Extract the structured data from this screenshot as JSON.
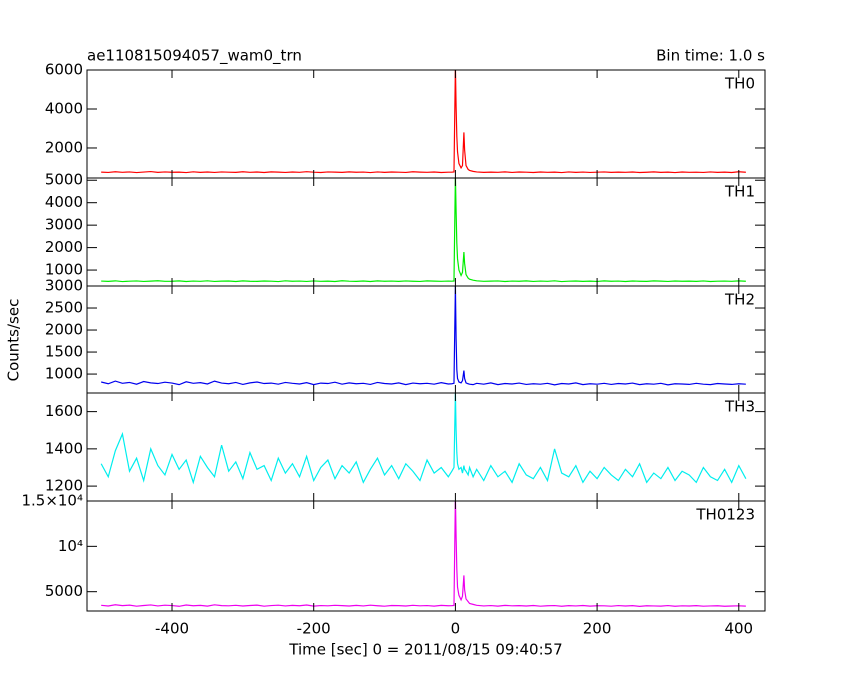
{
  "chart_data": {
    "type": "stacked-line",
    "title": "ae110815094057_wam0_trn",
    "subtitle": "Bin time: 1.0 s",
    "ylabel": "Counts/sec",
    "xlabel": "Time [sec] 0 = 2011/08/15 09:40:57",
    "xlim": [
      -520,
      437
    ],
    "xticks": [
      -400,
      -200,
      0,
      200,
      400
    ],
    "x": [
      -500,
      -490,
      -480,
      -470,
      -460,
      -450,
      -440,
      -430,
      -420,
      -410,
      -400,
      -390,
      -380,
      -370,
      -360,
      -350,
      -340,
      -330,
      -320,
      -310,
      -300,
      -290,
      -280,
      -270,
      -260,
      -250,
      -240,
      -230,
      -220,
      -210,
      -200,
      -190,
      -180,
      -170,
      -160,
      -150,
      -140,
      -130,
      -120,
      -110,
      -100,
      -90,
      -80,
      -70,
      -60,
      -50,
      -40,
      -30,
      -20,
      -10,
      -5,
      -2,
      0,
      1,
      2,
      3,
      5,
      8,
      10,
      12,
      13,
      15,
      18,
      20,
      25,
      30,
      40,
      50,
      60,
      70,
      80,
      90,
      100,
      110,
      120,
      130,
      140,
      150,
      160,
      170,
      180,
      190,
      200,
      210,
      220,
      230,
      240,
      250,
      260,
      270,
      280,
      290,
      300,
      310,
      320,
      330,
      340,
      350,
      360,
      370,
      380,
      390,
      400,
      410
    ],
    "series": [
      {
        "name": "TH0",
        "color": "#ff0000",
        "ylim": [
          460,
          6000
        ],
        "yticks": [
          2000,
          4000,
          6000
        ],
        "values": [
          760,
          745,
          780,
          752,
          770,
          738,
          765,
          790,
          748,
          771,
          755,
          762,
          740,
          778,
          750,
          766,
          744,
          772,
          758,
          749,
          781,
          753,
          767,
          741,
          775,
          760,
          746,
          769,
          752,
          784,
          757,
          743,
          770,
          761,
          748,
          776,
          755,
          764,
          739,
          771,
          750,
          768,
          757,
          745,
          779,
          762,
          751,
          766,
          742,
          758,
          760,
          770,
          6200,
          4100,
          2600,
          1800,
          1200,
          980,
          1100,
          2800,
          1900,
          1100,
          900,
          850,
          800,
          770,
          748,
          761,
          752,
          775,
          744,
          766,
          757,
          741,
          769,
          753,
          762,
          738,
          771,
          750,
          764,
          745,
          758,
          772,
          747,
          760,
          751,
          768,
          743,
          756,
          774,
          749,
          762,
          740,
          766,
          753,
          758,
          745,
          771,
          750,
          763,
          742,
          780,
          755
        ]
      },
      {
        "name": "TH1",
        "color": "#00ee00",
        "ylim": [
          290,
          5100
        ],
        "yticks": [
          1000,
          2000,
          3000,
          4000,
          5000
        ],
        "values": [
          510,
          495,
          520,
          488,
          505,
          515,
          492,
          508,
          525,
          498,
          503,
          517,
          490,
          511,
          499,
          522,
          494,
          507,
          513,
          489,
          519,
          501,
          496,
          514,
          505,
          487,
          521,
          502,
          510,
          493,
          516,
          498,
          508,
          491,
          524,
          504,
          497,
          512,
          489,
          518,
          500,
          509,
          495,
          515,
          503,
          492,
          520,
          506,
          499,
          511,
          505,
          512,
          5200,
          3600,
          2200,
          1500,
          1000,
          760,
          900,
          1800,
          1300,
          800,
          640,
          590,
          550,
          520,
          498,
          507,
          515,
          490,
          509,
          502,
          518,
          494,
          511,
          499,
          521,
          488,
          505,
          513,
          496,
          508,
          492,
          517,
          501,
          510,
          489,
          514,
          503,
          497,
          519,
          506,
          493,
          512,
          500,
          508,
          495,
          516,
          490,
          504,
          511,
          498,
          520,
          502
        ]
      },
      {
        "name": "TH2",
        "color": "#0000ee",
        "ylim": [
          570,
          3000
        ],
        "yticks": [
          1000,
          1500,
          2000,
          2500,
          3000
        ],
        "values": [
          820,
          780,
          840,
          790,
          810,
          770,
          830,
          800,
          785,
          815,
          795,
          760,
          825,
          790,
          805,
          775,
          840,
          795,
          780,
          810,
          765,
          800,
          820,
          785,
          795,
          770,
          810,
          790,
          775,
          805,
          760,
          795,
          785,
          815,
          770,
          800,
          780,
          790,
          765,
          810,
          785,
          775,
          800,
          760,
          795,
          780,
          790,
          770,
          805,
          775,
          780,
          790,
          3000,
          1800,
          1100,
          900,
          820,
          800,
          850,
          1080,
          900,
          800,
          780,
          770,
          760,
          790,
          770,
          800,
          760,
          785,
          775,
          795,
          765,
          780,
          770,
          790,
          755,
          785,
          775,
          800,
          760,
          780,
          770,
          790,
          765,
          785,
          775,
          795,
          760,
          780,
          770,
          790,
          755,
          780,
          775,
          765,
          790,
          770,
          760,
          785,
          775,
          765,
          780,
          770
        ]
      },
      {
        "name": "TH3",
        "color": "#00eeee",
        "ylim": [
          1120,
          1700
        ],
        "yticks": [
          1200,
          1400,
          1600
        ],
        "values": [
          1320,
          1250,
          1390,
          1480,
          1280,
          1350,
          1230,
          1400,
          1310,
          1260,
          1370,
          1290,
          1340,
          1220,
          1360,
          1300,
          1250,
          1420,
          1280,
          1330,
          1240,
          1380,
          1290,
          1310,
          1230,
          1350,
          1270,
          1320,
          1250,
          1360,
          1230,
          1300,
          1340,
          1240,
          1310,
          1270,
          1330,
          1220,
          1290,
          1350,
          1260,
          1310,
          1240,
          1320,
          1280,
          1230,
          1340,
          1270,
          1300,
          1250,
          1280,
          1300,
          1700,
          1500,
          1380,
          1320,
          1290,
          1300,
          1270,
          1310,
          1290,
          1280,
          1260,
          1300,
          1250,
          1290,
          1230,
          1310,
          1250,
          1280,
          1220,
          1320,
          1260,
          1240,
          1300,
          1230,
          1400,
          1270,
          1250,
          1310,
          1220,
          1280,
          1240,
          1300,
          1260,
          1230,
          1290,
          1250,
          1320,
          1220,
          1270,
          1240,
          1300,
          1230,
          1280,
          1260,
          1220,
          1300,
          1250,
          1230,
          1290,
          1220,
          1310,
          1240
        ]
      },
      {
        "name": "TH0123",
        "color": "#ee00ee",
        "ylim": [
          2870,
          15000
        ],
        "yticks": [
          5000,
          {
            "value": 10000,
            "label": "10⁴"
          },
          {
            "value": 15000,
            "label": "1.5×10⁴"
          }
        ],
        "values": [
          3500,
          3420,
          3560,
          3460,
          3520,
          3400,
          3480,
          3540,
          3430,
          3510,
          3470,
          3390,
          3530,
          3450,
          3490,
          3410,
          3550,
          3460,
          3440,
          3500,
          3420,
          3480,
          3520,
          3400,
          3470,
          3510,
          3430,
          3490,
          3450,
          3530,
          3410,
          3470,
          3440,
          3500,
          3460,
          3420,
          3490,
          3430,
          3510,
          3450,
          3400,
          3480,
          3460,
          3420,
          3500,
          3440,
          3470,
          3410,
          3490,
          3450,
          3460,
          3480,
          15500,
          11000,
          7500,
          5500,
          4600,
          4100,
          4500,
          6800,
          5200,
          4200,
          3900,
          3700,
          3600,
          3500,
          3430,
          3470,
          3410,
          3490,
          3440,
          3460,
          3420,
          3480,
          3400,
          3450,
          3470,
          3390,
          3460,
          3430,
          3480,
          3410,
          3450,
          3440,
          3400,
          3470,
          3420,
          3460,
          3380,
          3450,
          3430,
          3410,
          3470,
          3390,
          3440,
          3420,
          3460,
          3400,
          3430,
          3450,
          3390,
          3420,
          3440,
          3410
        ]
      }
    ]
  }
}
